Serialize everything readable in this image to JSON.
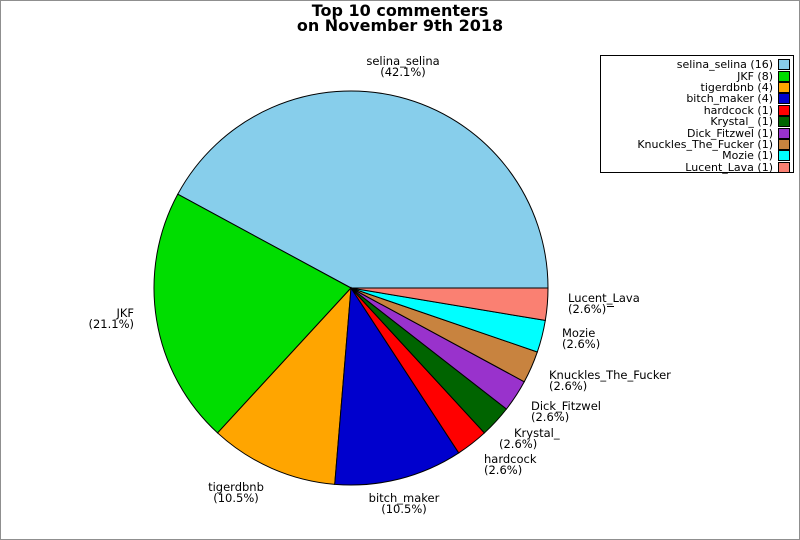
{
  "title": {
    "line1": "Top 10 commenters",
    "line2": "on November 9th 2018"
  },
  "chart_data": {
    "type": "pie",
    "title": "Top 10 commenters on November 9th 2018",
    "total": 38,
    "start_angle_deg": 0,
    "direction": "counterclockwise",
    "legend_position": "upper right",
    "edge_color": "#000000",
    "slices": [
      {
        "name": "selina_selina",
        "value": 16,
        "percent_label": "(42.1%)",
        "legend_label": "selina_selina (16)",
        "color": "#87CEEB"
      },
      {
        "name": "JKF",
        "value": 8,
        "percent_label": "(21.1%)",
        "legend_label": "JKF (8)",
        "color": "#00DD00"
      },
      {
        "name": "tigerdbnb",
        "value": 4,
        "percent_label": "(10.5%)",
        "legend_label": "tigerdbnb (4)",
        "color": "#FFA500"
      },
      {
        "name": "bitch_maker",
        "value": 4,
        "percent_label": "(10.5%)",
        "legend_label": "bitch_maker (4)",
        "color": "#0000CD"
      },
      {
        "name": "hardcock",
        "value": 1,
        "percent_label": "(2.6%)",
        "legend_label": "hardcock (1)",
        "color": "#FF0000"
      },
      {
        "name": "Krystal_",
        "value": 1,
        "percent_label": "(2.6%)",
        "legend_label": "Krystal_ (1)",
        "color": "#006400"
      },
      {
        "name": "Dick_Fitzwel",
        "value": 1,
        "percent_label": "(2.6%)",
        "legend_label": "Dick_Fitzwel (1)",
        "color": "#9932CC"
      },
      {
        "name": "Knuckles_The_Fucker",
        "value": 1,
        "percent_label": "(2.6%)",
        "legend_label": "Knuckles_The_Fucker (1)",
        "color": "#C8833F"
      },
      {
        "name": "Mozie",
        "value": 1,
        "percent_label": "(2.6%)",
        "legend_label": "Mozie (1)",
        "color": "#00FFFF"
      },
      {
        "name": "Lucent_Lava",
        "value": 1,
        "percent_label": "(2.6%)",
        "legend_label": "Lucent_Lava (1)",
        "color": "#FA8072"
      }
    ]
  }
}
